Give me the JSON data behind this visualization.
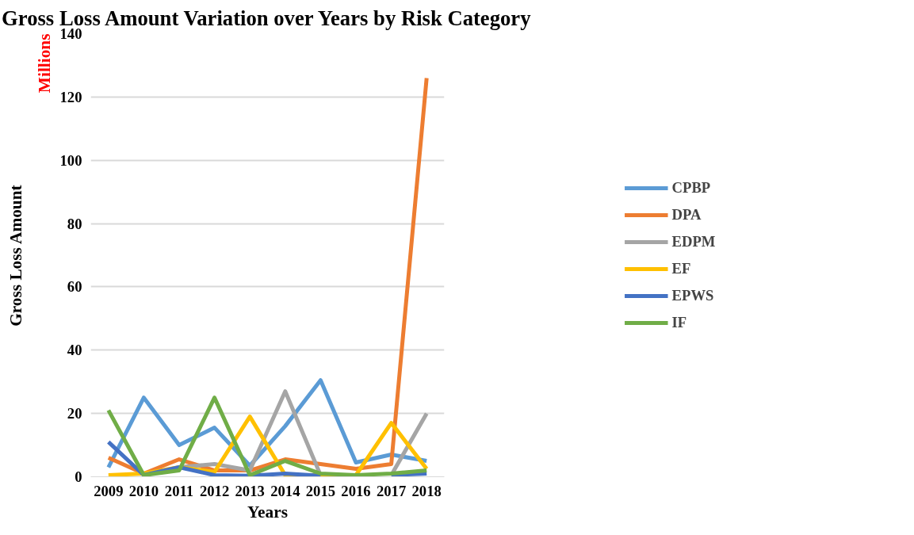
{
  "chart_data": {
    "type": "line",
    "title": "Gross Loss Amount Variation over Years by Risk Category",
    "xlabel": "Years",
    "ylabel": "Gross Loss Amount",
    "annotations": [
      "Millions"
    ],
    "categories": [
      "2009",
      "2010",
      "2011",
      "2012",
      "2013",
      "2014",
      "2015",
      "2016",
      "2017",
      "2018"
    ],
    "series": [
      {
        "name": "CPBP",
        "color": "#5b9bd5",
        "values": [
          3,
          25,
          10,
          15.5,
          3.5,
          16,
          30.5,
          4.5,
          7,
          5
        ]
      },
      {
        "name": "DPA",
        "color": "#ed7d31",
        "values": [
          6,
          1,
          5.5,
          2,
          2,
          5.5,
          4,
          2.5,
          4,
          126
        ]
      },
      {
        "name": "EDPM",
        "color": "#a5a5a5",
        "values": [
          null,
          null,
          3,
          4,
          2,
          27,
          0.5,
          null,
          0.5,
          20
        ]
      },
      {
        "name": "EF",
        "color": "#ffc000",
        "values": [
          0.5,
          1,
          3,
          1.5,
          19,
          0.5,
          0.5,
          0.5,
          17,
          2.5
        ]
      },
      {
        "name": "EPWS",
        "color": "#4472c4",
        "values": [
          11,
          0.5,
          3,
          0.5,
          0.3,
          1,
          0.3,
          null,
          0.5,
          1
        ]
      },
      {
        "name": "IF",
        "color": "#70ad47",
        "values": [
          21,
          0.5,
          2,
          25,
          0.5,
          5,
          1,
          0.5,
          1,
          2
        ]
      }
    ],
    "ylim": [
      0,
      140
    ],
    "yticks": [
      0,
      20,
      40,
      60,
      80,
      100,
      120,
      140
    ],
    "grid": "y",
    "legend": "right",
    "marker": "none",
    "line_style": "solid"
  }
}
